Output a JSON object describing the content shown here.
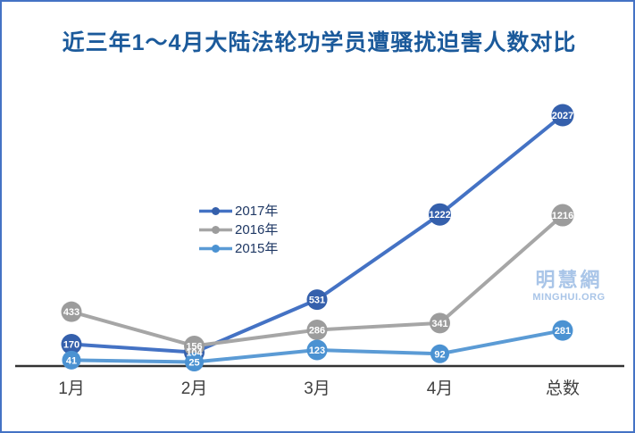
{
  "page": {
    "border_color": "#4472C4",
    "background_color": "#FFFFFF"
  },
  "chart_data": {
    "type": "line",
    "title": "近三年1～4月大陆法轮功学员遭骚扰迫害人数对比",
    "title_color": "#1B5A9B",
    "categories": [
      "1月",
      "2月",
      "3月",
      "4月",
      "总数"
    ],
    "series": [
      {
        "name": "2017年",
        "line_color": "#4472C4",
        "marker_color": "#3560AC",
        "values": [
          170,
          104,
          531,
          1222,
          2027
        ]
      },
      {
        "name": "2016年",
        "line_color": "#A6A6A6",
        "marker_color": "#9C9C9C",
        "values": [
          433,
          156,
          286,
          341,
          1216
        ]
      },
      {
        "name": "2015年",
        "line_color": "#5B9BD5",
        "marker_color": "#4B92D2",
        "values": [
          41,
          25,
          123,
          92,
          281
        ]
      }
    ],
    "data_labels": true,
    "data_label_color": "#FFFFFF",
    "ylim": [
      0,
      2100
    ],
    "grid": false,
    "legend_position": "middle-left",
    "axis_line_color": "#333333",
    "axis_label_color": "#404040"
  },
  "watermark": {
    "line1": "明慧網",
    "line2": "MINGHUI.ORG",
    "color": "#A9C5E8"
  }
}
